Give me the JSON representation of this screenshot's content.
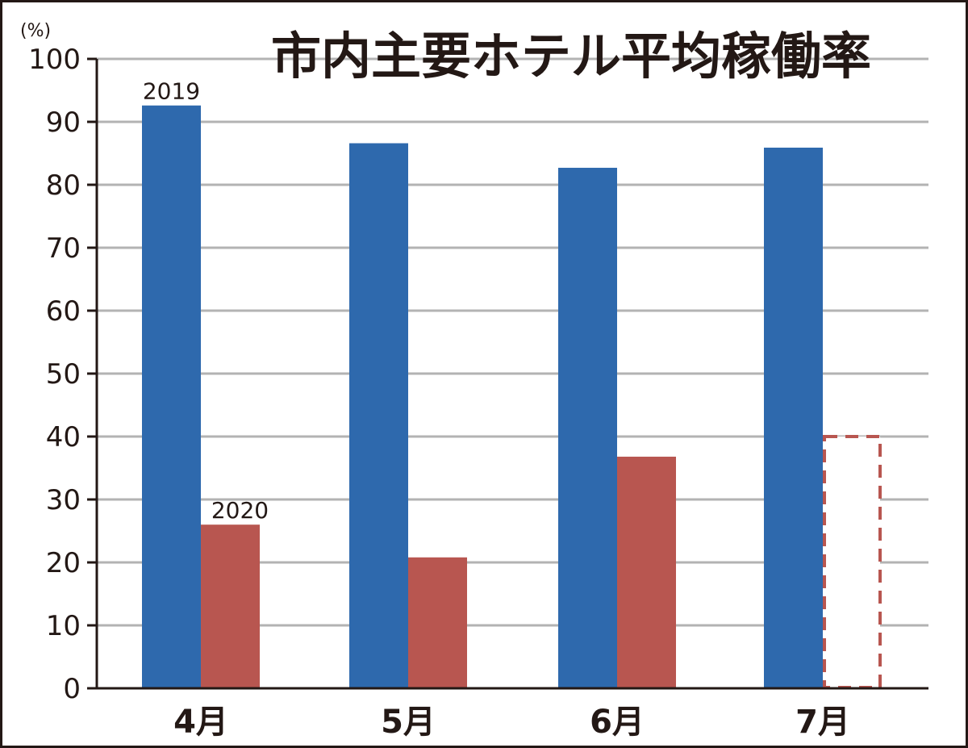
{
  "chart_data": {
    "type": "bar",
    "title": "市内主要ホテル平均稼働率",
    "unit_label": "(%)",
    "categories": [
      "4月",
      "5月",
      "6月",
      "7月"
    ],
    "series": [
      {
        "name": "2019",
        "values": [
          92.6,
          86.6,
          82.7,
          85.9
        ],
        "color": "#2e69ad"
      },
      {
        "name": "2020",
        "values": [
          26.0,
          20.8,
          36.8,
          40.0
        ],
        "color": "#b85650",
        "estimated_flags": [
          false,
          false,
          false,
          true
        ]
      }
    ],
    "ylim": [
      0,
      100
    ],
    "yticks": [
      0,
      10,
      20,
      30,
      40,
      50,
      60,
      70,
      80,
      90,
      100
    ],
    "grid": true,
    "legend": "inline-labels",
    "colors": {
      "axis": "#231815",
      "grid": "#b3b3b3",
      "frame": "#231815"
    }
  }
}
